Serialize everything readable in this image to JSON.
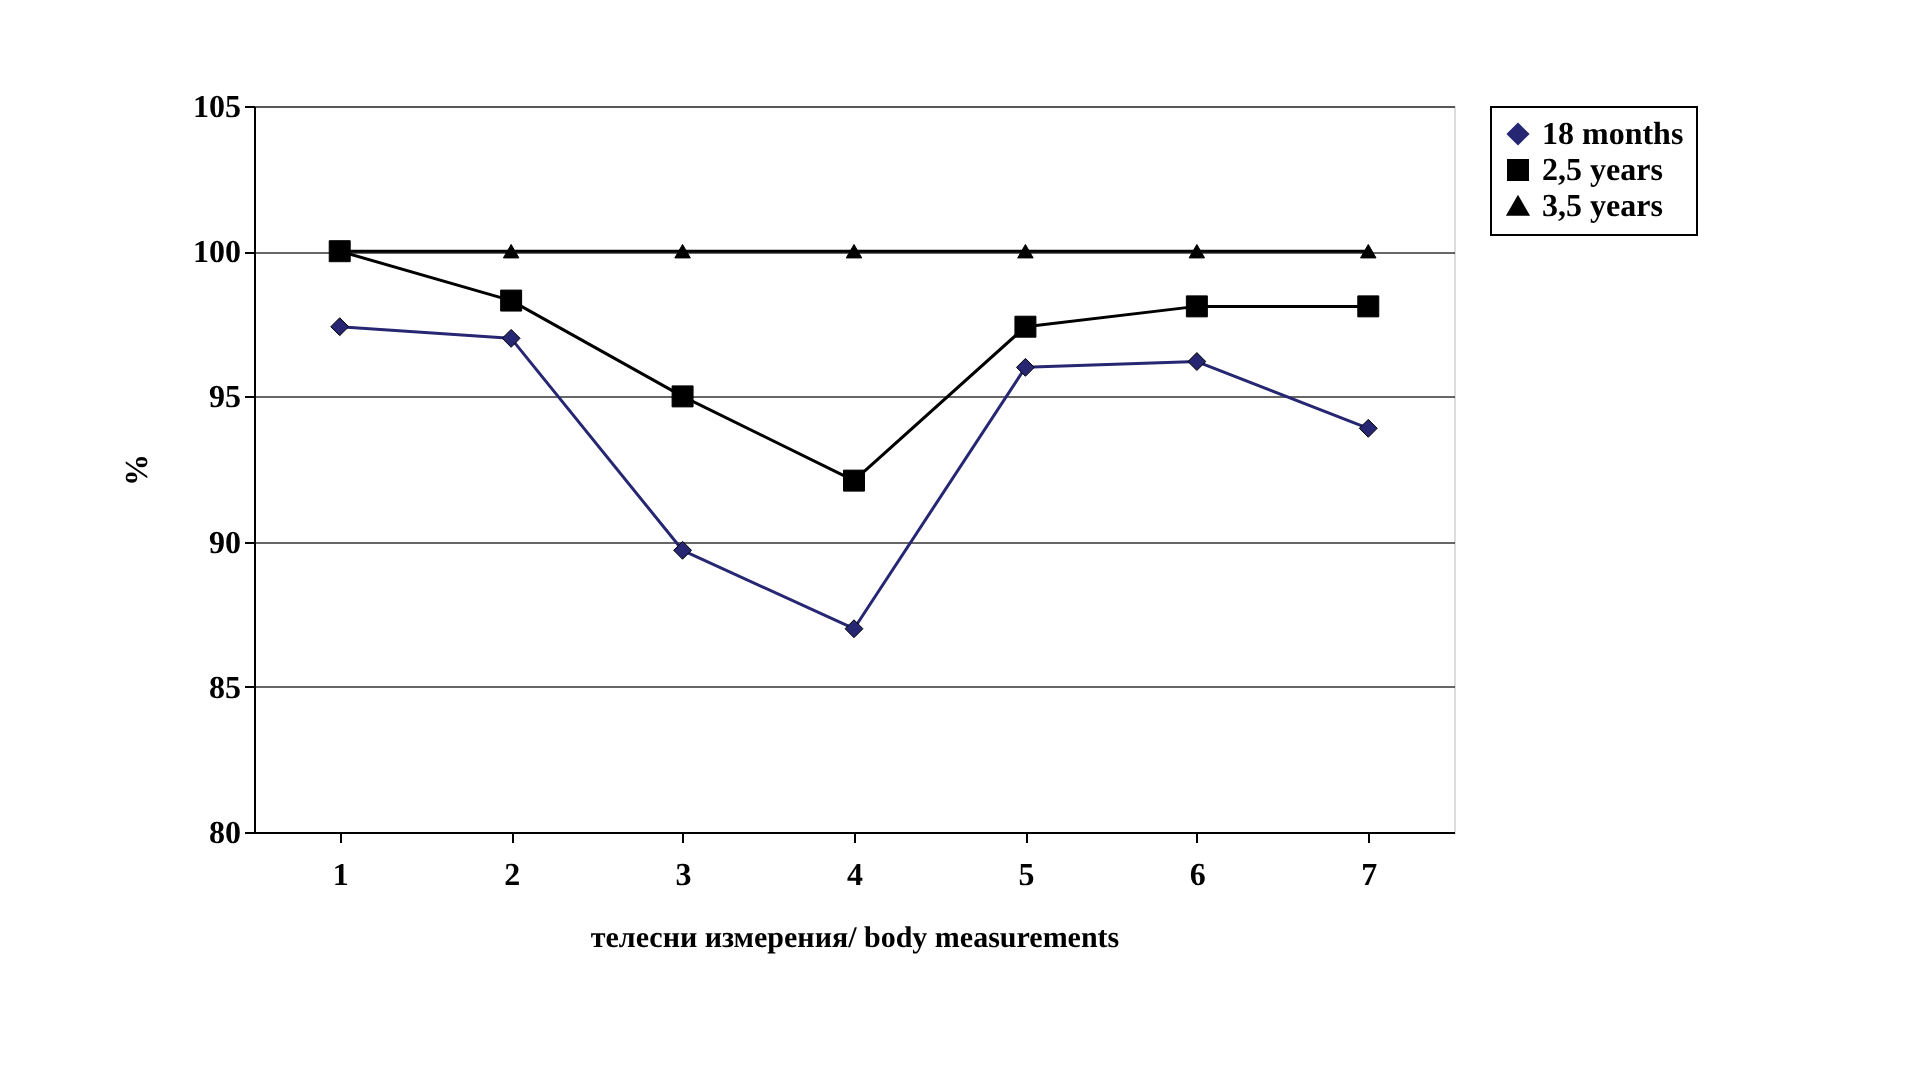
{
  "chart_data": {
    "type": "line",
    "xlabel": "телесни измерения/ body measurements",
    "ylabel": "%",
    "categories": [
      "1",
      "2",
      "3",
      "4",
      "5",
      "6",
      "7"
    ],
    "series": [
      {
        "name": "18 months",
        "color": "#262673",
        "marker": "diamond",
        "values": [
          97.4,
          97.0,
          89.7,
          87.0,
          96.0,
          96.2,
          93.9
        ]
      },
      {
        "name": "2,5 years",
        "color": "#000000",
        "marker": "square",
        "values": [
          100,
          98.3,
          95.0,
          92.1,
          97.4,
          98.1,
          98.1
        ]
      },
      {
        "name": "3,5 years",
        "color": "#000000",
        "marker": "triangle",
        "values": [
          100,
          100,
          100,
          100,
          100,
          100,
          100
        ]
      }
    ],
    "ylim": [
      80,
      105
    ],
    "yticks": [
      80,
      85,
      90,
      95,
      100,
      105
    ],
    "grid": "y",
    "legend": "right",
    "line_style": "solid"
  }
}
